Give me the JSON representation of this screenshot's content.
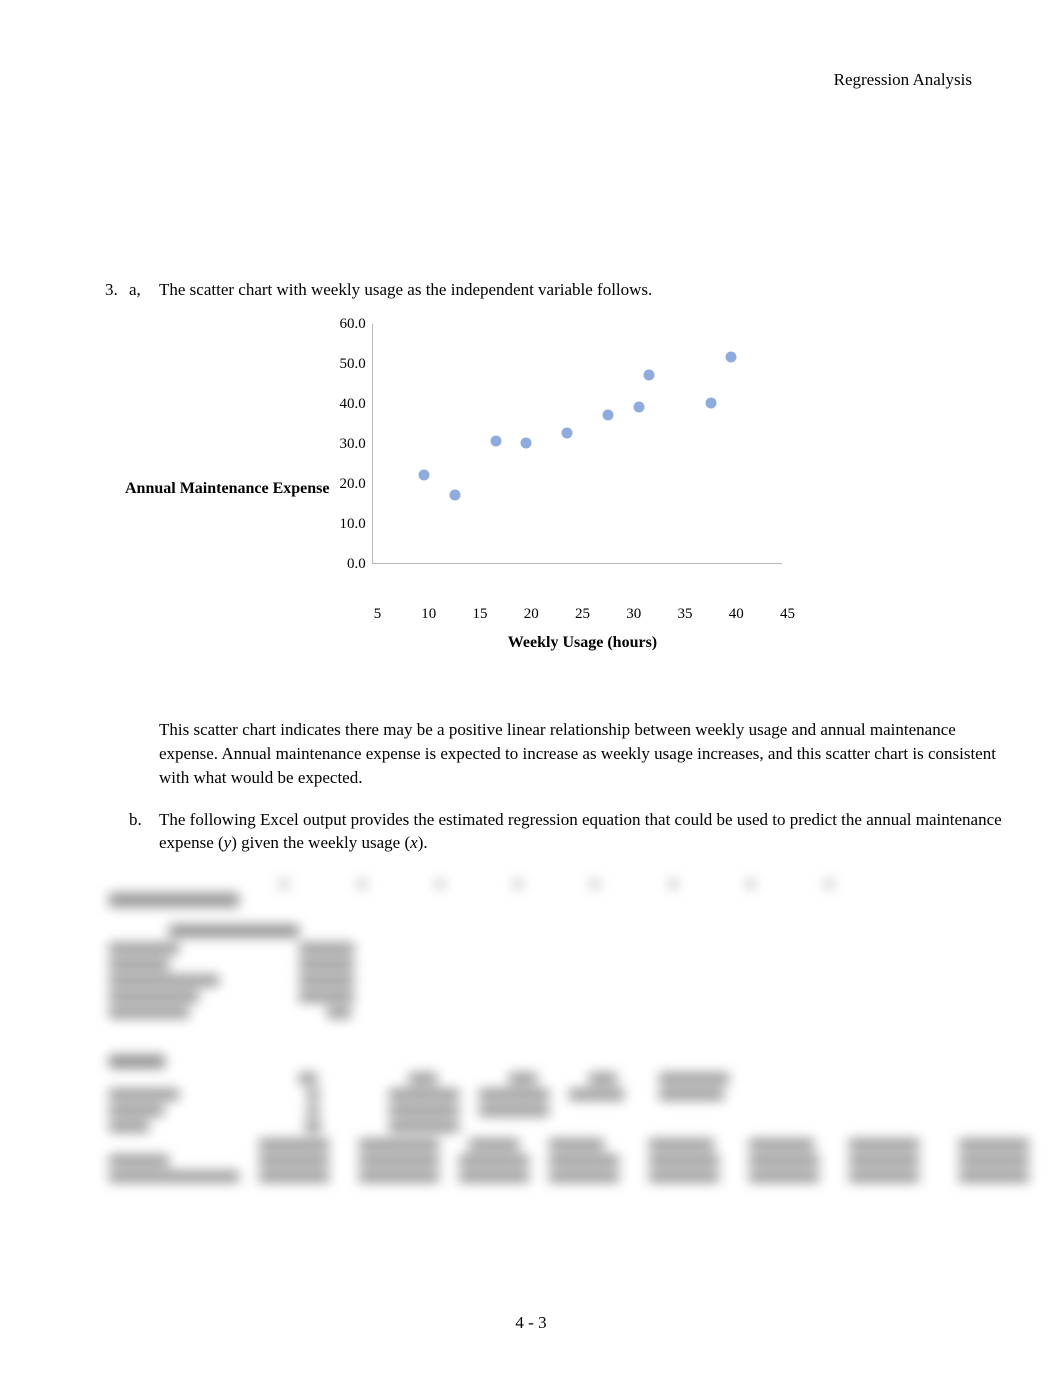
{
  "header": "Regression Analysis",
  "item_number": "3.",
  "part_a_label": "a,",
  "part_a_text": "The scatter chart with weekly usage as the independent variable follows.",
  "chart": {
    "type": "scatter",
    "ylabel": "Annual Maintenance Expense",
    "xlabel": "Weekly Usage (hours)",
    "xlim": [
      5,
      45
    ],
    "ylim": [
      0,
      60
    ],
    "xticks": [
      5,
      10,
      15,
      20,
      25,
      30,
      35,
      40,
      45
    ],
    "yticks": [
      "60.0",
      "50.0",
      "40.0",
      "30.0",
      "20.0",
      "10.0",
      "0.0"
    ],
    "ytick_step": 10,
    "xtick_step": 5,
    "marker_color": "#8faadc",
    "marker_size": 11,
    "axis_color": "#b8b8b8",
    "background_color": "#ffffff",
    "label_fontsize": 16,
    "tick_fontsize": 15,
    "points": [
      {
        "x": 13,
        "y": 17.0
      },
      {
        "x": 10,
        "y": 22.0
      },
      {
        "x": 20,
        "y": 30.0
      },
      {
        "x": 28,
        "y": 37.0
      },
      {
        "x": 32,
        "y": 47.0
      },
      {
        "x": 17,
        "y": 30.5
      },
      {
        "x": 24,
        "y": 32.5
      },
      {
        "x": 31,
        "y": 39.0
      },
      {
        "x": 40,
        "y": 51.5
      },
      {
        "x": 38,
        "y": 40.0
      }
    ]
  },
  "para_a2": "This scatter chart indicates there may be a positive linear relationship between weekly usage and annual maintenance expense. Annual maintenance expense is expected to increase as weekly usage increases, and this scatter chart is consistent with what would be expected.",
  "part_b_label": "b.",
  "part_b_text_1": "The following Excel output provides the estimated regression equation that could be used to predict the annual maintenance expense (",
  "part_b_y": "y",
  "part_b_text_2": ") given the weekly usage (",
  "part_b_x": "x",
  "part_b_text_3": ").",
  "footer": "4 - 3"
}
